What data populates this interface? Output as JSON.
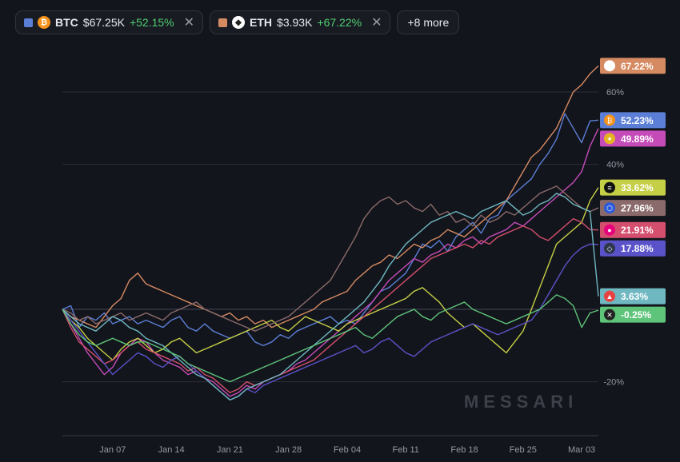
{
  "header": {
    "chips": [
      {
        "sym": "BTC",
        "price": "$67.25K",
        "change": "+52.15%",
        "color": "#5b7fd6",
        "coin_icon": "bitcoin-icon",
        "coin_color": "#f7931a",
        "coin_glyph": "₿"
      },
      {
        "sym": "ETH",
        "price": "$3.93K",
        "change": "+67.22%",
        "color": "#d68a62",
        "coin_icon": "ethereum-icon",
        "coin_color": "#ffffff",
        "coin_glyph": "◆"
      }
    ],
    "more_label": "+8 more",
    "close_glyph": "✕"
  },
  "watermark": "MESSARI",
  "chart_data": {
    "type": "line",
    "y_unit": "%",
    "ylim": [
      -35,
      75
    ],
    "yticks": [
      {
        "value": 60,
        "label": "60%"
      },
      {
        "value": 40,
        "label": "40%"
      },
      {
        "value": -20,
        "label": "-20%"
      }
    ],
    "x_domain": [
      0,
      64
    ],
    "xticks": [
      {
        "value": 6,
        "label": "Jan 07"
      },
      {
        "value": 13,
        "label": "Jan 14"
      },
      {
        "value": 20,
        "label": "Jan 21"
      },
      {
        "value": 27,
        "label": "Jan 28"
      },
      {
        "value": 34,
        "label": "Feb 04"
      },
      {
        "value": 41,
        "label": "Feb 11"
      },
      {
        "value": 48,
        "label": "Feb 18"
      },
      {
        "value": 55,
        "label": "Feb 25"
      },
      {
        "value": 62,
        "label": "Mar 03"
      }
    ],
    "series": [
      {
        "name": "BTC",
        "color": "#5b7fd6",
        "end_label": "52.23%",
        "icon": "bitcoin-icon",
        "icon_color": "#f7931a",
        "icon_glyph": "₿",
        "values": [
          0,
          1,
          -5,
          -2,
          -3,
          -1,
          -4,
          -3,
          -2,
          -4,
          -3,
          -4,
          -5,
          -3,
          -2,
          -5,
          -6,
          -4,
          -6,
          -7,
          -8,
          -7,
          -6,
          -9,
          -10,
          -9,
          -7,
          -8,
          -6,
          -5,
          -4,
          -3,
          -2,
          -4,
          -3,
          -4,
          -1,
          2,
          5,
          6,
          8,
          10,
          14,
          18,
          17,
          19,
          16,
          20,
          22,
          24,
          21,
          25,
          26,
          30,
          32,
          34,
          36,
          40,
          43,
          47,
          54,
          50,
          46,
          52,
          52.2
        ]
      },
      {
        "name": "ETH",
        "color": "#d68a62",
        "end_label": "67.22%",
        "icon": "ethereum-icon",
        "icon_color": "#ffffff",
        "icon_glyph": "◆",
        "values": [
          0,
          -2,
          -3,
          -4,
          -5,
          -2,
          1,
          3,
          8,
          10,
          7,
          6,
          5,
          4,
          3,
          2,
          1,
          0,
          -1,
          -2,
          -1,
          -3,
          -2,
          -4,
          -3,
          -5,
          -4,
          -3,
          -2,
          -1,
          0,
          2,
          3,
          4,
          5,
          8,
          10,
          12,
          13,
          15,
          14,
          16,
          18,
          17,
          19,
          20,
          22,
          21,
          20,
          22,
          24,
          26,
          28,
          30,
          34,
          38,
          42,
          44,
          47,
          50,
          55,
          60,
          62,
          65,
          67.2
        ]
      },
      {
        "name": "Gold",
        "color": "#c54bb9",
        "end_label": "49.89%",
        "icon": "gold-coin-icon",
        "icon_color": "#e6b422",
        "icon_glyph": "✦",
        "values": [
          0,
          -4,
          -8,
          -12,
          -15,
          -18,
          -16,
          -12,
          -10,
          -8,
          -9,
          -12,
          -14,
          -15,
          -16,
          -18,
          -17,
          -19,
          -20,
          -22,
          -24,
          -23,
          -21,
          -22,
          -20,
          -19,
          -18,
          -17,
          -15,
          -14,
          -12,
          -10,
          -8,
          -6,
          -4,
          -2,
          0,
          2,
          5,
          8,
          10,
          12,
          14,
          13,
          15,
          16,
          18,
          17,
          19,
          20,
          18,
          20,
          21,
          22,
          24,
          23,
          25,
          27,
          29,
          31,
          33,
          35,
          38,
          45,
          49.9
        ]
      },
      {
        "name": "SOL",
        "color": "#c5cf45",
        "end_label": "33.62%",
        "icon": "solana-icon",
        "icon_color": "#111111",
        "icon_glyph": "≡",
        "values": [
          0,
          -3,
          -5,
          -8,
          -10,
          -12,
          -14,
          -11,
          -9,
          -8,
          -10,
          -12,
          -11,
          -9,
          -8,
          -10,
          -12,
          -11,
          -10,
          -9,
          -8,
          -7,
          -6,
          -5,
          -4,
          -3,
          -5,
          -6,
          -4,
          -2,
          -3,
          -4,
          -5,
          -6,
          -4,
          -3,
          -2,
          -1,
          0,
          1,
          2,
          3,
          5,
          6,
          4,
          2,
          -1,
          -3,
          -5,
          -4,
          -6,
          -8,
          -10,
          -12,
          -9,
          -6,
          0,
          6,
          12,
          18,
          20,
          22,
          24,
          30,
          33.6
        ]
      },
      {
        "name": "LINK",
        "color": "#8a6a6a",
        "end_label": "27.96%",
        "icon": "chainlink-icon",
        "icon_color": "#2a5ada",
        "icon_glyph": "⬡",
        "values": [
          0,
          -1,
          -3,
          -2,
          -4,
          -3,
          -2,
          -1,
          -3,
          -2,
          -1,
          -2,
          -3,
          -1,
          0,
          1,
          2,
          0,
          -1,
          -2,
          -3,
          -4,
          -5,
          -6,
          -5,
          -4,
          -3,
          -2,
          0,
          2,
          4,
          6,
          8,
          12,
          16,
          20,
          25,
          28,
          30,
          31,
          29,
          30,
          28,
          27,
          29,
          26,
          27,
          24,
          25,
          23,
          26,
          24,
          25,
          27,
          26,
          28,
          30,
          32,
          33,
          34,
          32,
          30,
          28,
          27,
          28
        ]
      },
      {
        "name": "DOT",
        "color": "#d44f6e",
        "end_label": "21.91%",
        "icon": "polkadot-icon",
        "icon_color": "#e6007a",
        "icon_glyph": "●",
        "values": [
          0,
          -5,
          -9,
          -11,
          -13,
          -15,
          -14,
          -12,
          -10,
          -9,
          -11,
          -12,
          -13,
          -14,
          -15,
          -17,
          -16,
          -18,
          -19,
          -21,
          -23,
          -22,
          -20,
          -21,
          -20,
          -19,
          -18,
          -17,
          -16,
          -15,
          -14,
          -12,
          -10,
          -8,
          -6,
          -4,
          -2,
          0,
          2,
          4,
          6,
          8,
          10,
          12,
          14,
          15,
          16,
          17,
          18,
          17,
          19,
          18,
          20,
          21,
          22,
          23,
          22,
          20,
          19,
          21,
          23,
          25,
          24,
          22,
          21.9
        ]
      },
      {
        "name": "ARB",
        "color": "#5a52c8",
        "end_label": "17.88%",
        "icon": "arbitrum-icon",
        "icon_color": "#2d374b",
        "icon_glyph": "◇",
        "values": [
          0,
          -3,
          -6,
          -9,
          -12,
          -15,
          -18,
          -16,
          -14,
          -12,
          -13,
          -15,
          -16,
          -14,
          -13,
          -15,
          -17,
          -19,
          -21,
          -23,
          -25,
          -24,
          -22,
          -23,
          -21,
          -20,
          -19,
          -18,
          -17,
          -16,
          -15,
          -14,
          -13,
          -12,
          -11,
          -10,
          -12,
          -11,
          -9,
          -8,
          -10,
          -12,
          -13,
          -11,
          -9,
          -8,
          -7,
          -6,
          -5,
          -4,
          -5,
          -6,
          -7,
          -6,
          -5,
          -4,
          -3,
          0,
          4,
          8,
          12,
          15,
          17,
          18,
          17.9
        ]
      },
      {
        "name": "AVAX",
        "color": "#6fb8c2",
        "end_label": "3.63%",
        "icon": "avalanche-icon",
        "icon_color": "#e84142",
        "icon_glyph": "▲",
        "values": [
          0,
          -2,
          -4,
          -5,
          -6,
          -4,
          -2,
          -3,
          -5,
          -6,
          -8,
          -9,
          -10,
          -12,
          -14,
          -16,
          -18,
          -19,
          -21,
          -23,
          -25,
          -24,
          -22,
          -21,
          -20,
          -19,
          -18,
          -16,
          -14,
          -12,
          -10,
          -8,
          -6,
          -4,
          -2,
          0,
          2,
          5,
          8,
          12,
          15,
          18,
          20,
          22,
          24,
          25,
          26,
          27,
          26,
          25,
          27,
          28,
          29,
          30,
          28,
          26,
          27,
          29,
          30,
          32,
          31,
          29,
          28,
          27,
          3.6
        ]
      },
      {
        "name": "X",
        "color": "#5ec47a",
        "end_label": "-0.25%",
        "icon": "x-logo-icon",
        "icon_color": "#222222",
        "icon_glyph": "✕",
        "values": [
          0,
          -4,
          -7,
          -9,
          -10,
          -9,
          -8,
          -9,
          -10,
          -9,
          -9,
          -10,
          -11,
          -12,
          -13,
          -15,
          -16,
          -17,
          -18,
          -19,
          -20,
          -19,
          -18,
          -17,
          -16,
          -15,
          -14,
          -13,
          -12,
          -11,
          -10,
          -9,
          -8,
          -7,
          -6,
          -5,
          -7,
          -8,
          -6,
          -4,
          -2,
          -1,
          0,
          -2,
          -3,
          -1,
          0,
          1,
          2,
          0,
          -1,
          -2,
          -3,
          -4,
          -3,
          -2,
          -1,
          0,
          2,
          4,
          3,
          1,
          -5,
          -1,
          -0.25
        ]
      }
    ]
  }
}
